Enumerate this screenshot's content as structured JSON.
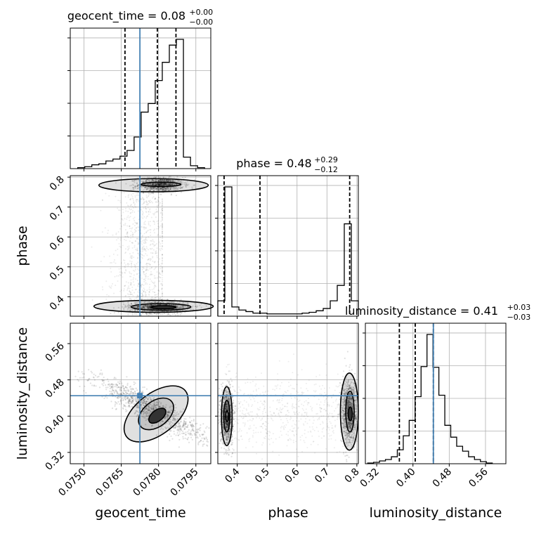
{
  "chart_data": {
    "type": "corner",
    "truth_color": "#4682b4",
    "parameters": [
      {
        "name": "geocent_time",
        "range": [
          0.07445,
          0.0801
        ],
        "ticks": [
          0.075,
          0.0765,
          0.078,
          0.0795
        ],
        "tick_labels": [
          "0.0750",
          "0.0765",
          "0.0780",
          "0.0795"
        ],
        "truth": 0.07725,
        "quantiles": [
          0.07665,
          0.07795,
          0.0787
        ],
        "title": {
          "prefix": "geocent_time = 0.08",
          "plus": "+0.00",
          "minus": "−0.00"
        },
        "hist_counts": [
          1,
          2,
          4,
          5,
          8,
          10,
          13,
          19,
          33,
          59,
          68,
          92,
          111,
          129,
          135,
          12,
          3,
          1
        ],
        "axis_label": "geocent_time"
      },
      {
        "name": "phase",
        "range": [
          0.335,
          0.805
        ],
        "ticks": [
          0.4,
          0.5,
          0.6,
          0.7,
          0.8
        ],
        "tick_labels": [
          "0.4",
          "0.5",
          "0.6",
          "0.7",
          "0.8"
        ],
        "truth": null,
        "quantiles": [
          0.356,
          0.476,
          0.776
        ],
        "title": {
          "prefix": "phase = 0.48",
          "plus": "+0.29",
          "minus": "−0.12"
        },
        "hist_counts": [
          20,
          168,
          12,
          8,
          6,
          4,
          4,
          3,
          3,
          3,
          3,
          3,
          4,
          5,
          7,
          10,
          20,
          40,
          120,
          20
        ],
        "axis_label": "phase"
      },
      {
        "name": "luminosity_distance",
        "range": [
          0.295,
          0.605
        ],
        "ticks": [
          0.32,
          0.4,
          0.48,
          0.56
        ],
        "tick_labels": [
          "0.32",
          "0.40",
          "0.48",
          "0.56"
        ],
        "truth": 0.445,
        "quantiles": [
          0.37,
          0.405,
          0.445
        ],
        "title": {
          "prefix": "luminosity_distance = 0.41",
          "plus": "+0.03",
          "minus": "−0.03"
        },
        "hist_counts": [
          1,
          2,
          4,
          6,
          10,
          20,
          40,
          62,
          96,
          139,
          185,
          138,
          98,
          55,
          38,
          25,
          18,
          10,
          6,
          3,
          1
        ],
        "axis_label": "luminosity_distance"
      }
    ],
    "scatter_pairs": [
      {
        "x": "geocent_time",
        "y": "phase",
        "modes": [
          {
            "center": [
              0.0781,
              0.775
            ],
            "spread": [
              0.00045,
              0.012
            ]
          },
          {
            "center": [
              0.078,
              0.365
            ],
            "spread": [
              0.0006,
              0.01
            ]
          }
        ],
        "contours": [
          {
            "center": [
              0.0778,
              0.773
            ],
            "radii": [
              0.0022,
              0.022
            ]
          },
          {
            "center": [
              0.0781,
              0.776
            ],
            "radii": [
              0.0008,
              0.007
            ]
          },
          {
            "center": [
              0.0778,
              0.368
            ],
            "radii": [
              0.0024,
              0.02
            ]
          },
          {
            "center": [
              0.0781,
              0.366
            ],
            "radii": [
              0.0012,
              0.011
            ]
          },
          {
            "center": [
              0.0782,
              0.365
            ],
            "radii": [
              0.0005,
              0.005
            ]
          }
        ]
      },
      {
        "x": "geocent_time",
        "y": "luminosity_distance",
        "modes": [
          {
            "center": [
              0.0777,
              0.415
            ],
            "spread": [
              0.0011,
              0.034
            ],
            "correlation": -0.9
          }
        ],
        "contours": [
          {
            "center": [
              0.0779,
              0.405
            ],
            "radii": [
              0.0015,
              0.045
            ],
            "angle": -38
          },
          {
            "center": [
              0.0779,
              0.405
            ],
            "radii": [
              0.0008,
              0.028
            ],
            "angle": -38
          },
          {
            "center": [
              0.07795,
              0.401
            ],
            "radii": [
              0.0004,
              0.012
            ],
            "angle": -38
          }
        ]
      },
      {
        "x": "phase",
        "y": "luminosity_distance",
        "modes": [
          {
            "center": [
              0.365,
              0.4
            ],
            "spread": [
              0.01,
              0.03
            ]
          },
          {
            "center": [
              0.775,
              0.41
            ],
            "spread": [
              0.013,
              0.035
            ]
          }
        ],
        "contours": [
          {
            "center": [
              0.365,
              0.4
            ],
            "radii": [
              0.018,
              0.065
            ]
          },
          {
            "center": [
              0.365,
              0.4
            ],
            "radii": [
              0.01,
              0.035
            ]
          },
          {
            "center": [
              0.366,
              0.4
            ],
            "radii": [
              0.005,
              0.012
            ]
          },
          {
            "center": [
              0.775,
              0.41
            ],
            "radii": [
              0.03,
              0.085
            ]
          },
          {
            "center": [
              0.777,
              0.41
            ],
            "radii": [
              0.014,
              0.045
            ]
          },
          {
            "center": [
              0.778,
              0.405
            ],
            "radii": [
              0.007,
              0.015
            ]
          }
        ]
      }
    ]
  }
}
